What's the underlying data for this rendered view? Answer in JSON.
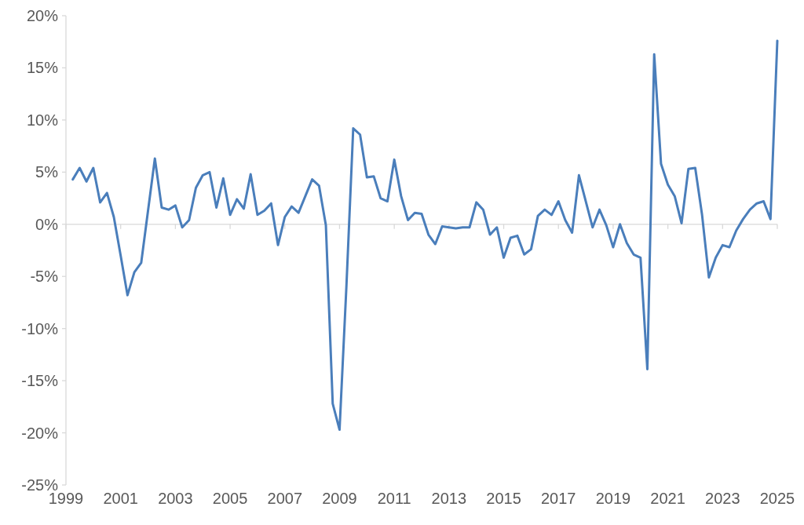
{
  "chart_data": {
    "type": "line",
    "x": [
      1999.25,
      1999.5,
      1999.75,
      2000,
      2000.25,
      2000.5,
      2000.75,
      2001,
      2001.25,
      2001.5,
      2001.75,
      2002,
      2002.25,
      2002.5,
      2002.75,
      2003,
      2003.25,
      2003.5,
      2003.75,
      2004,
      2004.25,
      2004.5,
      2004.75,
      2005,
      2005.25,
      2005.5,
      2005.75,
      2006,
      2006.25,
      2006.5,
      2006.75,
      2007,
      2007.25,
      2007.5,
      2007.75,
      2008,
      2008.25,
      2008.5,
      2008.75,
      2009,
      2009.25,
      2009.5,
      2009.75,
      2010,
      2010.25,
      2010.5,
      2010.75,
      2011,
      2011.25,
      2011.5,
      2011.75,
      2012,
      2012.25,
      2012.5,
      2012.75,
      2013,
      2013.25,
      2013.5,
      2013.75,
      2014,
      2014.25,
      2014.5,
      2014.75,
      2015,
      2015.25,
      2015.5,
      2015.75,
      2016,
      2016.25,
      2016.5,
      2016.75,
      2017,
      2017.25,
      2017.5,
      2017.75,
      2018,
      2018.25,
      2018.5,
      2018.75,
      2019,
      2019.25,
      2019.5,
      2019.75,
      2020,
      2020.25,
      2020.5,
      2020.75,
      2021,
      2021.25,
      2021.5,
      2021.75,
      2022,
      2022.25,
      2022.5,
      2022.75,
      2023,
      2023.25,
      2023.5,
      2023.75,
      2024,
      2024.25,
      2024.5,
      2024.75,
      2025
    ],
    "series": [
      {
        "color": "#4a7ebb",
        "values": [
          4.3,
          5.4,
          4.1,
          5.4,
          2.1,
          3.0,
          0.7,
          -3.0,
          -6.8,
          -4.6,
          -3.7,
          1.3,
          6.3,
          1.6,
          1.4,
          1.8,
          -0.3,
          0.4,
          3.5,
          4.7,
          5.0,
          1.6,
          4.4,
          0.9,
          2.4,
          1.5,
          4.8,
          0.9,
          1.3,
          2.0,
          -2.0,
          0.7,
          1.7,
          1.1,
          2.7,
          4.3,
          3.7,
          -0.1,
          -17.2,
          -19.7,
          -6.0,
          9.2,
          8.6,
          4.5,
          4.6,
          2.5,
          2.2,
          6.2,
          2.7,
          0.4,
          1.1,
          1.0,
          -1.0,
          -1.9,
          -0.2,
          -0.3,
          -0.4,
          -0.3,
          -0.3,
          2.1,
          1.4,
          -1.0,
          -0.3,
          -3.2,
          -1.3,
          -1.1,
          -2.9,
          -2.4,
          0.8,
          1.4,
          0.9,
          2.2,
          0.4,
          -0.8,
          4.7,
          2.2,
          -0.3,
          1.4,
          -0.1,
          -2.2,
          0.0,
          -1.8,
          -2.9,
          -3.2,
          -13.9,
          16.3,
          5.8,
          3.8,
          2.7,
          0.1,
          5.3,
          5.4,
          0.9,
          -5.1,
          -3.2,
          -2.0,
          -2.2,
          -0.6,
          0.5,
          1.4,
          2.0,
          2.2,
          0.5,
          17.6
        ]
      }
    ],
    "xlim": [
      1999,
      2025
    ],
    "xticks": [
      1999,
      2001,
      2003,
      2005,
      2007,
      2009,
      2011,
      2013,
      2015,
      2017,
      2019,
      2021,
      2023,
      2025
    ],
    "ylim": [
      -25,
      20
    ],
    "yticks": [
      {
        "value": -25,
        "label": "-25%"
      },
      {
        "value": -20,
        "label": "-20%"
      },
      {
        "value": -15,
        "label": "-15%"
      },
      {
        "value": -10,
        "label": "-10%"
      },
      {
        "value": -5,
        "label": "-5%"
      },
      {
        "value": 0,
        "label": "0%"
      },
      {
        "value": 5,
        "label": "5%"
      },
      {
        "value": 10,
        "label": "10%"
      },
      {
        "value": 15,
        "label": "15%"
      },
      {
        "value": 20,
        "label": "20%"
      }
    ],
    "marker": "none",
    "line_style": "solid"
  }
}
